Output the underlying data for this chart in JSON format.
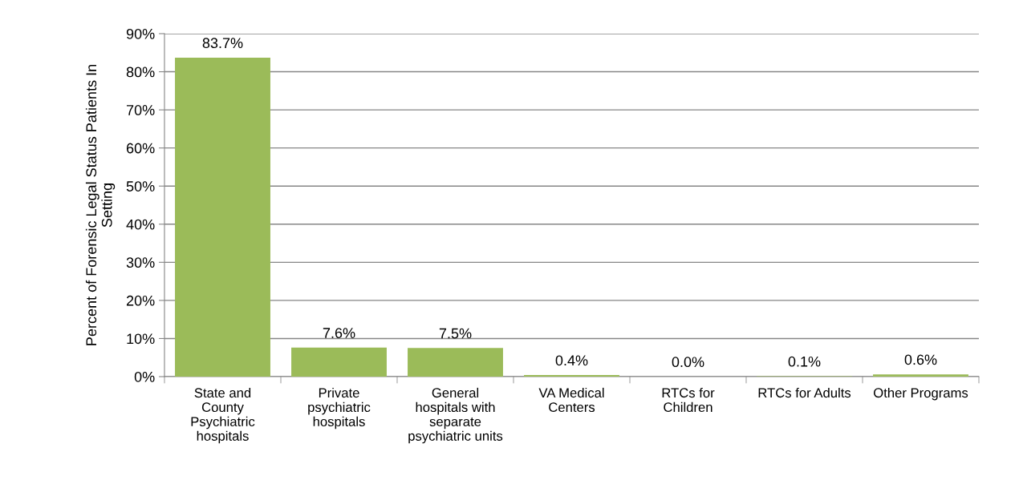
{
  "chart_data": {
    "type": "bar",
    "ylabel": "Percent of Forensic Legal Status Patients In\nSetting",
    "categories": [
      "State and\nCounty\nPsychiatric\nhospitals",
      "Private\npsychiatric\nhospitals",
      "General\nhospitals with\nseparate\npsychiatric units",
      "VA Medical\nCenters",
      "RTCs for\nChildren",
      "RTCs for Adults",
      "Other Programs"
    ],
    "values": [
      83.7,
      7.6,
      7.5,
      0.4,
      0.0,
      0.1,
      0.6
    ],
    "value_labels": [
      "83.7%",
      "7.6%",
      "7.5%",
      "0.4%",
      "0.0%",
      "0.1%",
      "0.6%"
    ],
    "color": "#9bbb59",
    "ylim": [
      0,
      90
    ],
    "yticks": [
      {
        "value": 0,
        "label": "0%"
      },
      {
        "value": 10,
        "label": "10%"
      },
      {
        "value": 20,
        "label": "20%"
      },
      {
        "value": 30,
        "label": "30%"
      },
      {
        "value": 40,
        "label": "40%"
      },
      {
        "value": 50,
        "label": "50%"
      },
      {
        "value": 60,
        "label": "60%"
      },
      {
        "value": 70,
        "label": "70%"
      },
      {
        "value": 80,
        "label": "80%"
      },
      {
        "value": 90,
        "label": "90%"
      }
    ],
    "grid": "y",
    "legend": false
  }
}
